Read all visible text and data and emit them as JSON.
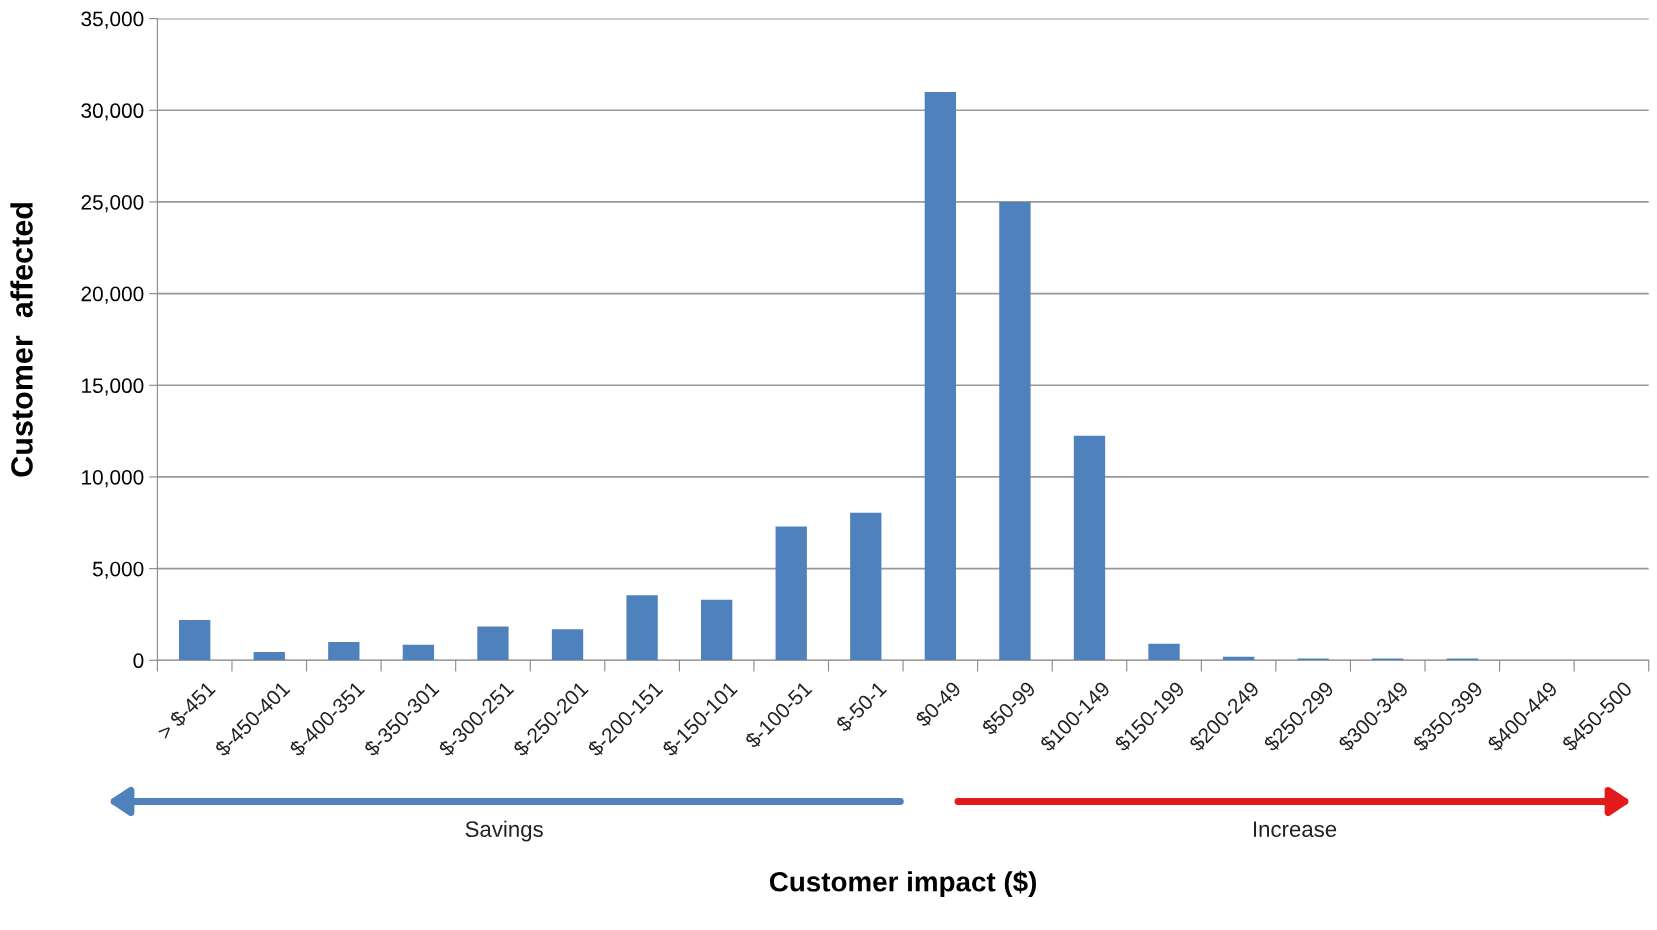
{
  "chart_data": {
    "type": "bar",
    "xlabel": "Customer impact ($)",
    "ylabel": "Customer  affected",
    "categories": [
      "> $-451",
      "$-450-401",
      "$-400-351",
      "$-350-301",
      "$-300-251",
      "$-250-201",
      "$-200-151",
      "$-150-101",
      "$-100-51",
      "$-50-1",
      "$0-49",
      "$50-99",
      "$100-149",
      "$150-199",
      "$200-249",
      "$250-299",
      "$300-349",
      "$350-399",
      "$400-449",
      "$450-500"
    ],
    "values": [
      2200,
      450,
      1000,
      850,
      1850,
      1700,
      3550,
      3300,
      7300,
      8050,
      31000,
      25000,
      12250,
      900,
      200,
      100,
      100,
      100,
      0,
      0
    ],
    "color": "#4f81bd",
    "ylim": [
      0,
      35000
    ],
    "yticks": [
      {
        "value": 0,
        "label": "0"
      },
      {
        "value": 5000,
        "label": "5,000"
      },
      {
        "value": 10000,
        "label": "10,000"
      },
      {
        "value": 15000,
        "label": "15,000"
      },
      {
        "value": 20000,
        "label": "20,000"
      },
      {
        "value": 25000,
        "label": "25,000"
      },
      {
        "value": 30000,
        "label": "30,000"
      },
      {
        "value": 35000,
        "label": "35,000"
      }
    ],
    "grid": "y",
    "annotations": [
      "Savings",
      "Increase"
    ]
  }
}
